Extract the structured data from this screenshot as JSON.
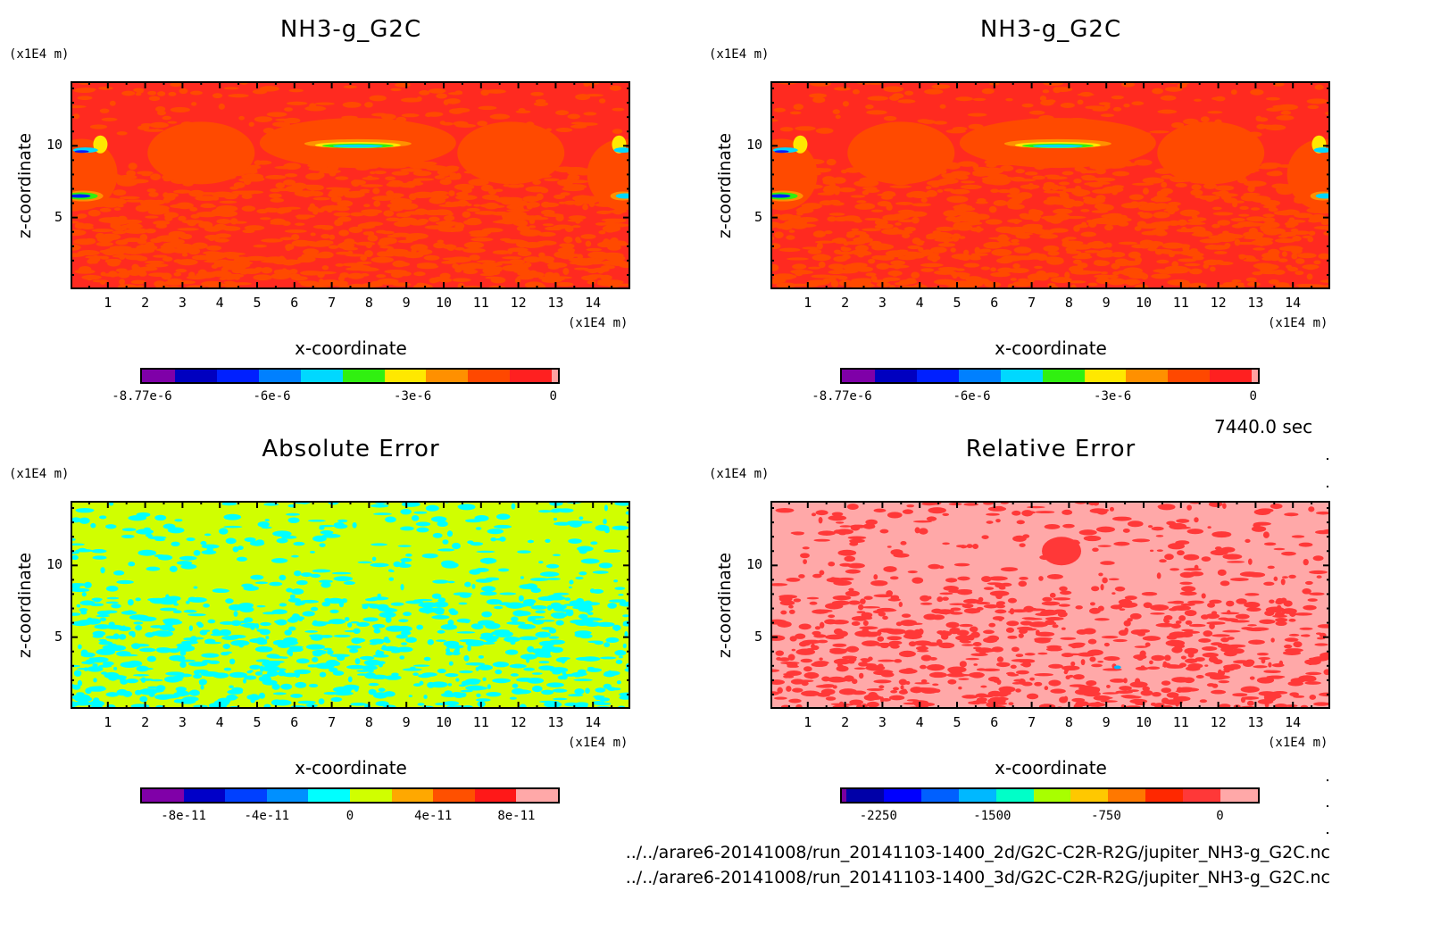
{
  "chart_data": [
    {
      "type": "heatmap",
      "id": "top-left",
      "title": "NH3-g_G2C",
      "xlabel": "x-coordinate",
      "ylabel": "z-coordinate",
      "x_unit": "(x1E4 m)",
      "y_unit": "(x1E4 m)",
      "xlim": [
        0,
        15
      ],
      "ylim": [
        0,
        14.5
      ],
      "xticks": [
        "1",
        "2",
        "3",
        "4",
        "5",
        "6",
        "7",
        "8",
        "9",
        "10",
        "11",
        "12",
        "13",
        "14"
      ],
      "yticks": [
        "5",
        "10"
      ],
      "colorbar": {
        "colors": [
          "#7f00a8",
          "#0000c0",
          "#0020ff",
          "#0080ff",
          "#00d8ff",
          "#30f010",
          "#ffe800",
          "#ff9000",
          "#ff4800",
          "#ff2020",
          "#ffa0a0"
        ],
        "weights": [
          0.8,
          1,
          1,
          1,
          1,
          1,
          1,
          1,
          1,
          1,
          0.15
        ],
        "tick_labels": [
          "-8.77e-6",
          "-6e-6",
          "-3e-6",
          "0"
        ],
        "tick_values": [
          -8.77e-06,
          -6e-06,
          -3e-06,
          0
        ],
        "range": [
          -8.77e-06,
          1e-07
        ]
      },
      "field": "NH3 mixing ratio (2D run), mostly near 0 (red/orange) with negative anomalies near z≈10 at x≈7-9 and near domain edges at z≈6.5 and z≈9.6"
    },
    {
      "type": "heatmap",
      "id": "top-right",
      "title": "NH3-g_G2C",
      "xlabel": "x-coordinate",
      "ylabel": "z-coordinate",
      "x_unit": "(x1E4 m)",
      "y_unit": "(x1E4 m)",
      "xlim": [
        0,
        15
      ],
      "ylim": [
        0,
        14.5
      ],
      "xticks": [
        "1",
        "2",
        "3",
        "4",
        "5",
        "6",
        "7",
        "8",
        "9",
        "10",
        "11",
        "12",
        "13",
        "14"
      ],
      "yticks": [
        "5",
        "10"
      ],
      "colorbar": {
        "colors": [
          "#7f00a8",
          "#0000c0",
          "#0020ff",
          "#0080ff",
          "#00d8ff",
          "#30f010",
          "#ffe800",
          "#ff9000",
          "#ff4800",
          "#ff2020",
          "#ffa0a0"
        ],
        "weights": [
          0.8,
          1,
          1,
          1,
          1,
          1,
          1,
          1,
          1,
          1,
          0.15
        ],
        "tick_labels": [
          "-8.77e-6",
          "-6e-6",
          "-3e-6",
          "0"
        ],
        "tick_values": [
          -8.77e-06,
          -6e-06,
          -3e-06,
          0
        ],
        "range": [
          -8.77e-06,
          1e-07
        ]
      },
      "field": "NH3 mixing ratio (3D run), visually identical to top-left"
    },
    {
      "type": "heatmap",
      "id": "bottom-left",
      "title": "Absolute Error",
      "xlabel": "x-coordinate",
      "ylabel": "z-coordinate",
      "x_unit": "(x1E4 m)",
      "y_unit": "(x1E4 m)",
      "xlim": [
        0,
        15
      ],
      "ylim": [
        0,
        14.5
      ],
      "xticks": [
        "1",
        "2",
        "3",
        "4",
        "5",
        "6",
        "7",
        "8",
        "9",
        "10",
        "11",
        "12",
        "13",
        "14"
      ],
      "yticks": [
        "5",
        "10"
      ],
      "colorbar": {
        "colors": [
          "#8000a8",
          "#0000c8",
          "#0040ff",
          "#0090ff",
          "#00ffff",
          "#d0ff00",
          "#ffa800",
          "#ff5000",
          "#ff1818",
          "#ffa8a8"
        ],
        "weights": [
          1,
          1,
          1,
          1,
          1,
          1,
          1,
          1,
          1,
          1
        ],
        "tick_labels": [
          "-8e-11",
          "-4e-11",
          "0",
          "4e-11",
          "8e-11"
        ],
        "tick_values": [
          -8e-11,
          -4e-11,
          0,
          4e-11,
          8e-11
        ],
        "range": [
          -1e-10,
          1e-10
        ]
      },
      "field": "Absolute error, values alternating between 0..2e-11 (yellow-green) and -2e-11..0 (cyan)"
    },
    {
      "type": "heatmap",
      "id": "bottom-right",
      "title": "Relative Error",
      "xlabel": "x-coordinate",
      "ylabel": "z-coordinate",
      "x_unit": "(x1E4 m)",
      "y_unit": "(x1E4 m)",
      "xlim": [
        0,
        15
      ],
      "ylim": [
        0,
        14.5
      ],
      "xticks": [
        "1",
        "2",
        "3",
        "4",
        "5",
        "6",
        "7",
        "8",
        "9",
        "10",
        "11",
        "12",
        "13",
        "14"
      ],
      "yticks": [
        "5",
        "10"
      ],
      "colorbar": {
        "colors": [
          "#7a00a0",
          "#0000a8",
          "#0000ff",
          "#0060ff",
          "#00b8ff",
          "#00ffc8",
          "#a8ff00",
          "#ffc800",
          "#ff7800",
          "#ff2800",
          "#ff3838",
          "#ffa8a8"
        ],
        "weights": [
          0.12,
          1,
          1,
          1,
          1,
          1,
          1,
          1,
          1,
          1,
          1,
          1
        ],
        "tick_labels": [
          "-2250",
          "-1500",
          "-750",
          "0"
        ],
        "tick_values": [
          -2250,
          -1500,
          -750,
          0
        ],
        "range": [
          -2490,
          250
        ]
      },
      "field": "Relative error, mostly 0..250 (pink) with patches -250..0 (red)"
    }
  ],
  "timestamp": "7440.0 sec",
  "files": [
    "../../arare6-20141008/run_20141103-1400_2d/G2C-C2R-R2G/jupiter_NH3-g_G2C.nc",
    "../../arare6-20141008/run_20141103-1400_3d/G2C-C2R-R2G/jupiter_NH3-g_G2C.nc"
  ]
}
